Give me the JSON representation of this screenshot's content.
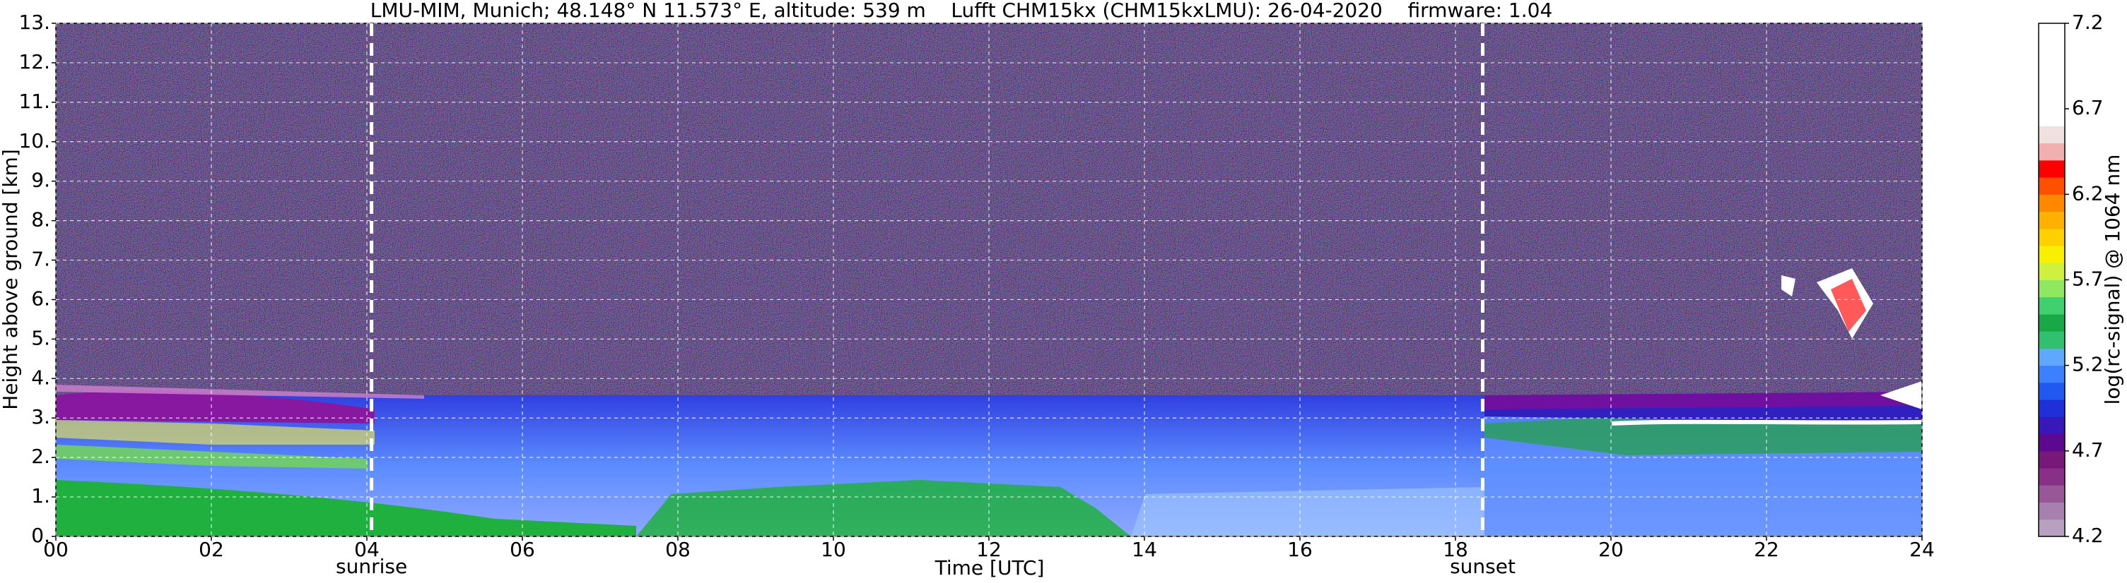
{
  "chart_data": {
    "type": "heatmap",
    "title": "LMU-MIM, Munich; 48.148° N 11.573° E, altitude: 539 m    Lufft CHM15kx (CHM15kxLMU): 26-04-2020    firmware: 1.04",
    "x_label": "Time [UTC]",
    "y_label": "Height above ground [km]",
    "xlim": [
      0,
      24
    ],
    "xticks": [
      {
        "value": 0,
        "label": "00"
      },
      {
        "value": 2,
        "label": "02"
      },
      {
        "value": 4,
        "label": "04"
      },
      {
        "value": 6,
        "label": "06"
      },
      {
        "value": 8,
        "label": "08"
      },
      {
        "value": 10,
        "label": "10"
      },
      {
        "value": 12,
        "label": "12"
      },
      {
        "value": 14,
        "label": "14"
      },
      {
        "value": 16,
        "label": "16"
      },
      {
        "value": 18,
        "label": "18"
      },
      {
        "value": 20,
        "label": "20"
      },
      {
        "value": 22,
        "label": "22"
      },
      {
        "value": 24,
        "label": "24"
      }
    ],
    "ylim": [
      0,
      13
    ],
    "yticks": [
      {
        "value": 0,
        "label": "0."
      },
      {
        "value": 1,
        "label": "1."
      },
      {
        "value": 2,
        "label": "2."
      },
      {
        "value": 3,
        "label": "3."
      },
      {
        "value": 4,
        "label": "4."
      },
      {
        "value": 5,
        "label": "5."
      },
      {
        "value": 6,
        "label": "6."
      },
      {
        "value": 7,
        "label": "7."
      },
      {
        "value": 8,
        "label": "8."
      },
      {
        "value": 9,
        "label": "9."
      },
      {
        "value": 10,
        "label": "10."
      },
      {
        "value": 11,
        "label": "11."
      },
      {
        "value": 12,
        "label": "12."
      },
      {
        "value": 13,
        "label": "13."
      }
    ],
    "grid": true,
    "annotations": [
      {
        "text": "sunrise",
        "x": 4.06
      },
      {
        "text": "sunset",
        "x": 18.35
      }
    ],
    "colorbar": {
      "label": "log(rc-signal) @ 1064 nm",
      "lim": [
        4.2,
        7.2
      ],
      "ticks": [
        4.2,
        4.7,
        5.2,
        5.7,
        6.2,
        6.7,
        7.2
      ],
      "colors": [
        "#b8a0c0",
        "#a880b0",
        "#985898",
        "#883088",
        "#781878",
        "#5c0890",
        "#3818b8",
        "#2030d8",
        "#2058f0",
        "#3c80ff",
        "#60a8ff",
        "#30c070",
        "#18a848",
        "#40d070",
        "#90e860",
        "#d0f040",
        "#f8f000",
        "#ffd000",
        "#ffb000",
        "#ff8800",
        "#ff5000",
        "#ff0000",
        "#f0b0b0",
        "#f0e0e0",
        "#ffffff",
        "#ffffff",
        "#ffffff",
        "#ffffff",
        "#ffffff",
        "#ffffff"
      ]
    }
  }
}
